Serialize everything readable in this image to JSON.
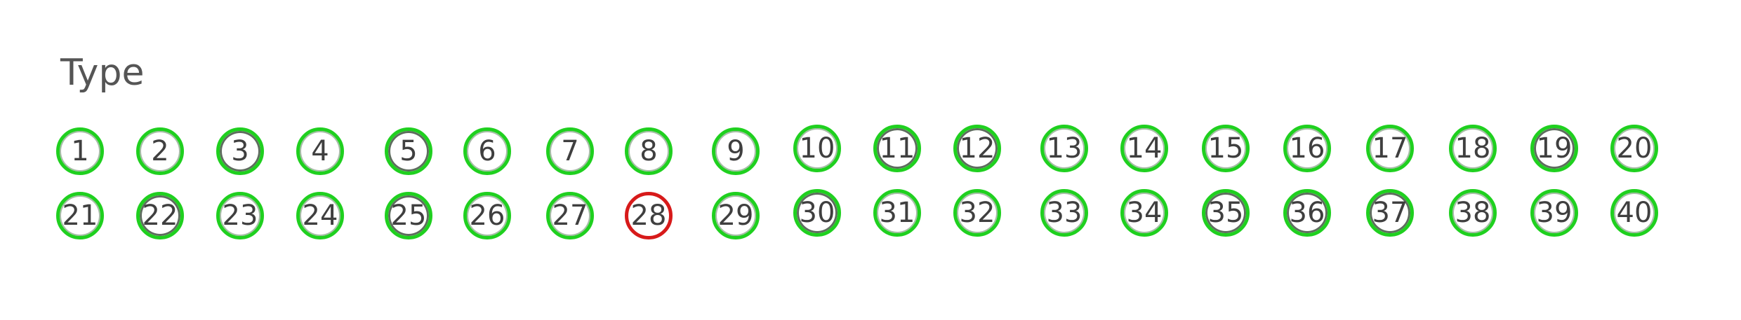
{
  "section": {
    "title": "Type"
  },
  "colors": {
    "answered": "#1fd01f",
    "current": "#d71a1a"
  },
  "questions": [
    {
      "label": "1",
      "state": "answered"
    },
    {
      "label": "2",
      "state": "answered"
    },
    {
      "label": "3",
      "state": "answered"
    },
    {
      "label": "4",
      "state": "answered"
    },
    {
      "label": "5",
      "state": "answered"
    },
    {
      "label": "6",
      "state": "answered"
    },
    {
      "label": "7",
      "state": "answered"
    },
    {
      "label": "8",
      "state": "answered"
    },
    {
      "label": "9",
      "state": "answered"
    },
    {
      "label": "10",
      "state": "answered"
    },
    {
      "label": "11",
      "state": "answered"
    },
    {
      "label": "12",
      "state": "answered"
    },
    {
      "label": "13",
      "state": "answered"
    },
    {
      "label": "14",
      "state": "answered"
    },
    {
      "label": "15",
      "state": "answered"
    },
    {
      "label": "16",
      "state": "answered"
    },
    {
      "label": "17",
      "state": "answered"
    },
    {
      "label": "18",
      "state": "answered"
    },
    {
      "label": "19",
      "state": "answered"
    },
    {
      "label": "20",
      "state": "answered"
    },
    {
      "label": "21",
      "state": "answered"
    },
    {
      "label": "22",
      "state": "answered"
    },
    {
      "label": "23",
      "state": "answered"
    },
    {
      "label": "24",
      "state": "answered"
    },
    {
      "label": "25",
      "state": "answered"
    },
    {
      "label": "26",
      "state": "answered"
    },
    {
      "label": "27",
      "state": "answered"
    },
    {
      "label": "28",
      "state": "current"
    },
    {
      "label": "29",
      "state": "answered"
    },
    {
      "label": "30",
      "state": "answered"
    },
    {
      "label": "31",
      "state": "answered"
    },
    {
      "label": "32",
      "state": "answered"
    },
    {
      "label": "33",
      "state": "answered"
    },
    {
      "label": "34",
      "state": "answered"
    },
    {
      "label": "35",
      "state": "answered"
    },
    {
      "label": "36",
      "state": "answered"
    },
    {
      "label": "37",
      "state": "answered"
    },
    {
      "label": "38",
      "state": "answered"
    },
    {
      "label": "39",
      "state": "answered"
    },
    {
      "label": "40",
      "state": "answered"
    }
  ]
}
